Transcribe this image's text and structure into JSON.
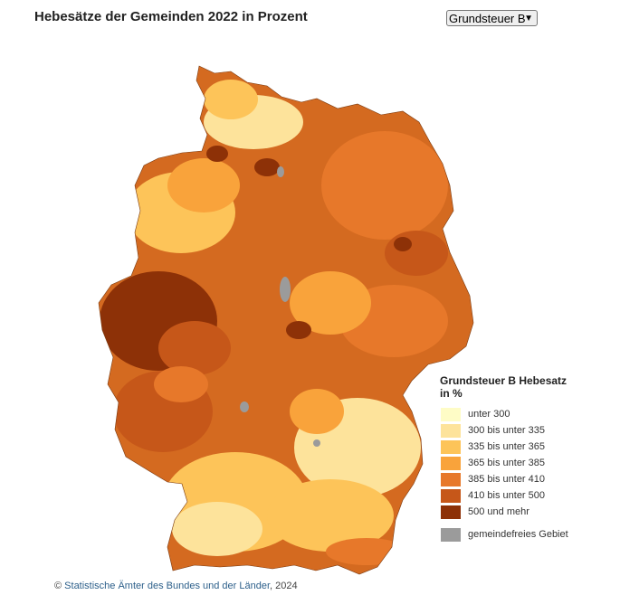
{
  "title": "Hebesätze der Gemeinden 2022 in Prozent",
  "selector": {
    "selected": "Grundsteuer B"
  },
  "legend": {
    "title": "Grundsteuer B Hebesatz in %",
    "items": [
      {
        "label": "unter 300",
        "color": "#fefcc6"
      },
      {
        "label": "300 bis unter 335",
        "color": "#fde39b"
      },
      {
        "label": "335 bis unter 365",
        "color": "#fdc459"
      },
      {
        "label": "365 bis unter 385",
        "color": "#f9a33b"
      },
      {
        "label": "385 bis unter 410",
        "color": "#e7782a"
      },
      {
        "label": "410 bis unter 500",
        "color": "#c65719"
      },
      {
        "label": "500 und mehr",
        "color": "#8d3107"
      }
    ],
    "other": {
      "label": "gemeindefreies Gebiet",
      "color": "#9b9b9b"
    }
  },
  "source": {
    "prefix": "© ",
    "link_text": "Statistische Ämter des Bundes und der Länder",
    "suffix": ", 2024"
  }
}
